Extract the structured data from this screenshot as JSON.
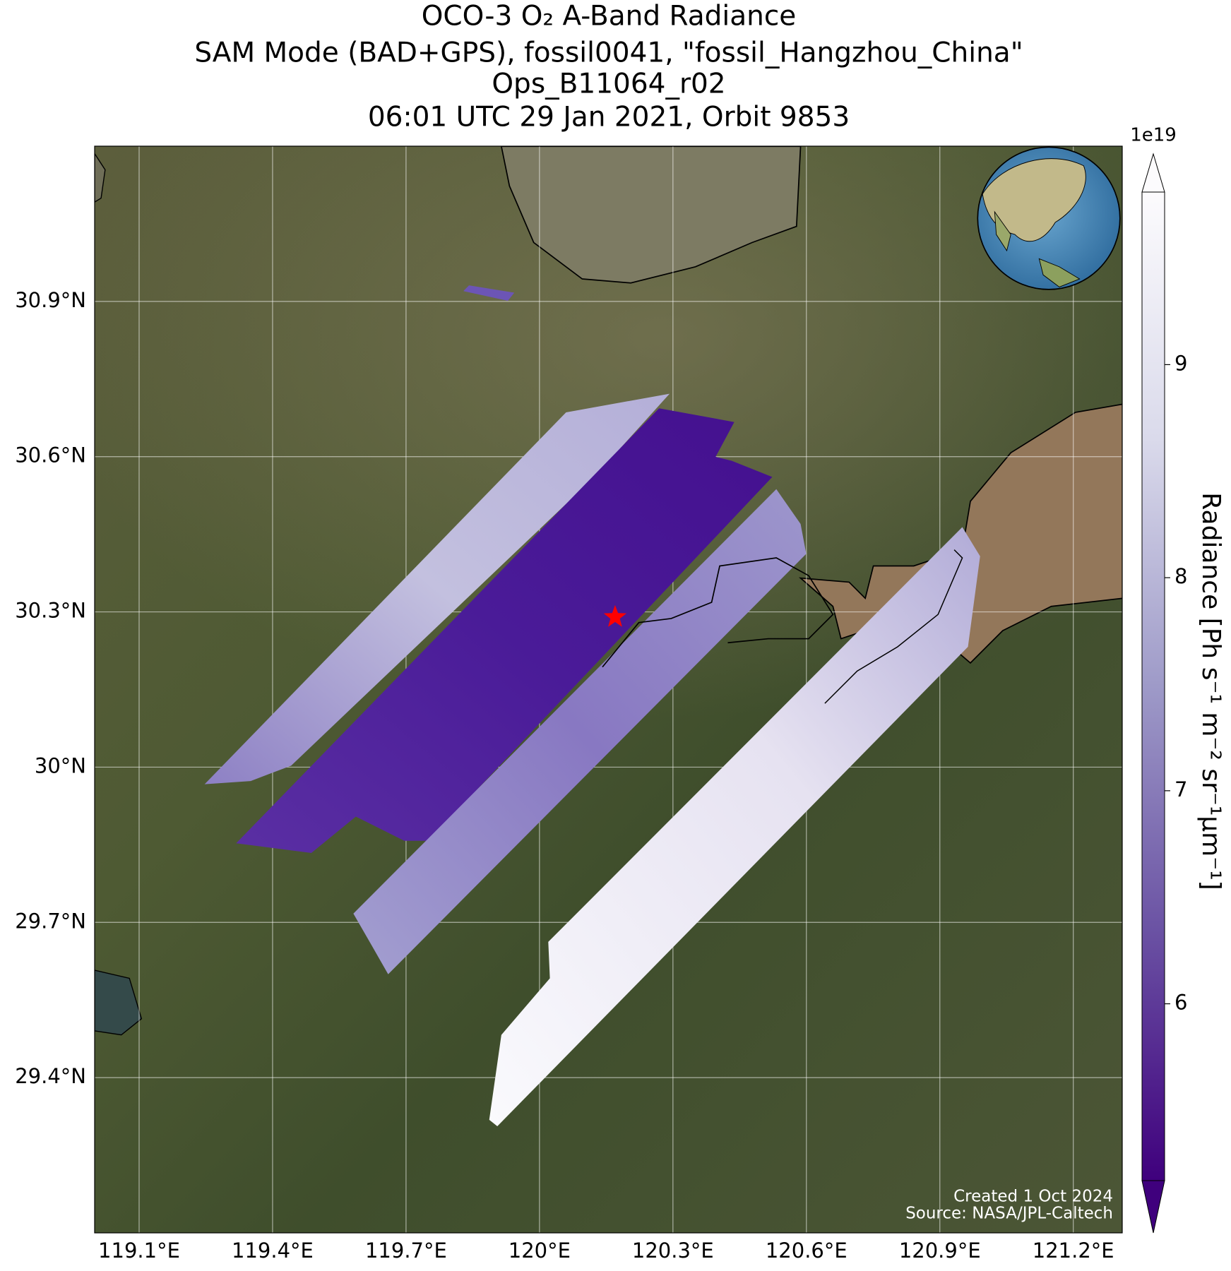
{
  "chart_data": {
    "type": "map",
    "title": [
      "OCO-3 O₂ A-Band Radiance",
      "SAM Mode (BAD+GPS), fossil0041, \"fossil_Hangzhou_China\"",
      "Ops_B11064_r02",
      "06:01 UTC 29 Jan 2021, Orbit 9853"
    ],
    "xlim": [
      119.0,
      121.31
    ],
    "ylim": [
      29.1,
      31.2
    ],
    "xticks": [
      {
        "value": 119.1,
        "label": "119.1°E"
      },
      {
        "value": 119.4,
        "label": "119.4°E"
      },
      {
        "value": 119.7,
        "label": "119.7°E"
      },
      {
        "value": 120.0,
        "label": "120°E"
      },
      {
        "value": 120.3,
        "label": "120.3°E"
      },
      {
        "value": 120.6,
        "label": "120.6°E"
      },
      {
        "value": 120.9,
        "label": "120.9°E"
      },
      {
        "value": 121.2,
        "label": "121.2°E"
      }
    ],
    "yticks": [
      {
        "value": 29.4,
        "label": "29.4°N"
      },
      {
        "value": 29.7,
        "label": "29.7°N"
      },
      {
        "value": 30.0,
        "label": "30°N"
      },
      {
        "value": 30.3,
        "label": "30.3°N"
      },
      {
        "value": 30.6,
        "label": "30.6°N"
      },
      {
        "value": 30.9,
        "label": "30.9°N"
      }
    ],
    "grid": true,
    "target": {
      "lon": 120.17,
      "lat": 30.29,
      "color": "#ff0000"
    },
    "colorbar": {
      "label": "Radiance [Ph s⁻¹ m⁻² sr⁻¹μm⁻¹]",
      "exponent": "1e19",
      "lim": [
        5.17,
        9.81
      ],
      "ticks": [
        6,
        7,
        8,
        9
      ],
      "colormap": [
        "#3f007d",
        "#6a51a3",
        "#9e9ac8",
        "#dadaeb",
        "#fcfbfd"
      ]
    },
    "credits": [
      "Created 1 Oct 2024",
      "Source: NASA/JPL-Caltech"
    ]
  }
}
